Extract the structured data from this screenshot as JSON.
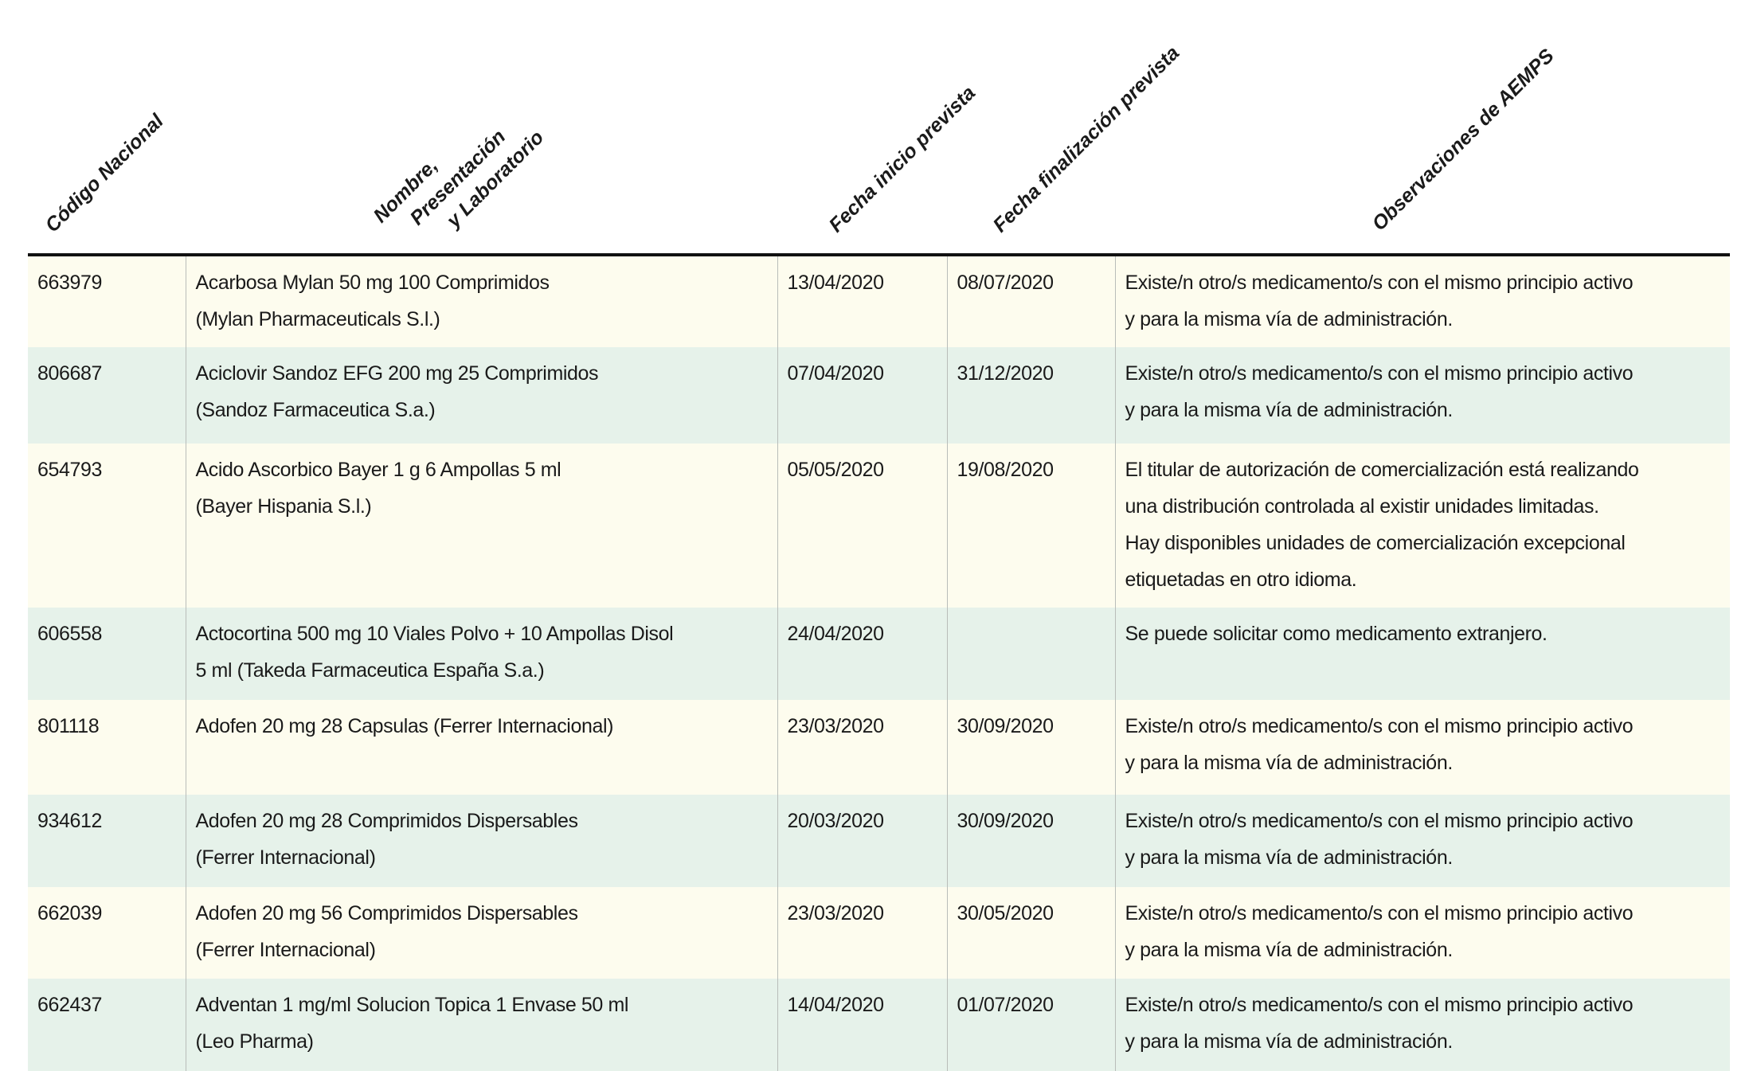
{
  "headers": {
    "codigo": "Código Nacional",
    "nombre": [
      "Nombre,",
      "Presentación",
      "y Laboratorio"
    ],
    "inicio": "Fecha inicio prevista",
    "fin": "Fecha finalización prevista",
    "obs": "Observaciones de AEMPS"
  },
  "rows": [
    {
      "codigo": "663979",
      "nombre": [
        "Acarbosa Mylan 50 mg 100 Comprimidos",
        "(Mylan Pharmaceuticals S.l.)"
      ],
      "inicio": "13/04/2020",
      "fin": "08/07/2020",
      "obs": [
        "Existe/n otro/s medicamento/s con el mismo principio activo",
        "y para la misma vía de administración."
      ]
    },
    {
      "codigo": "806687",
      "nombre": [
        "Aciclovir Sandoz EFG 200 mg 25 Comprimidos",
        "(Sandoz Farmaceutica S.a.)"
      ],
      "inicio": "07/04/2020",
      "fin": "31/12/2020",
      "obs": [
        "Existe/n otro/s medicamento/s con el mismo principio activo",
        "y para la misma vía de administración."
      ]
    },
    {
      "codigo": "654793",
      "nombre": [
        "Acido Ascorbico Bayer 1 g 6 Ampollas 5 ml",
        "(Bayer Hispania S.l.)"
      ],
      "inicio": "05/05/2020",
      "fin": "19/08/2020",
      "obs": [
        "El titular de autorización de comercialización está realizando",
        "una distribución controlada al existir unidades limitadas.",
        "Hay disponibles unidades de comercialización excepcional",
        "etiquetadas en otro idioma."
      ]
    },
    {
      "codigo": "606558",
      "nombre": [
        "Actocortina 500 mg 10 Viales Polvo + 10 Ampollas Disol",
        "5 ml (Takeda Farmaceutica España S.a.)"
      ],
      "inicio": "24/04/2020",
      "fin": "",
      "obs": [
        "Se puede solicitar como medicamento extranjero."
      ]
    },
    {
      "codigo": "801118",
      "nombre": [
        "Adofen 20 mg 28 Capsulas (Ferrer Internacional)"
      ],
      "inicio": "23/03/2020",
      "fin": "30/09/2020",
      "obs": [
        "Existe/n otro/s medicamento/s con el mismo principio activo",
        "y para la misma vía de administración."
      ]
    },
    {
      "codigo": "934612",
      "nombre": [
        "Adofen 20 mg 28 Comprimidos Dispersables",
        "(Ferrer Internacional)"
      ],
      "inicio": "20/03/2020",
      "fin": "30/09/2020",
      "obs": [
        "Existe/n otro/s medicamento/s con el mismo principio activo",
        "y para la misma vía de administración."
      ]
    },
    {
      "codigo": "662039",
      "nombre": [
        "Adofen 20 mg 56 Comprimidos Dispersables",
        "(Ferrer Internacional)"
      ],
      "inicio": "23/03/2020",
      "fin": "30/05/2020",
      "obs": [
        "Existe/n otro/s medicamento/s con el mismo principio activo",
        "y para la misma vía de administración."
      ]
    },
    {
      "codigo": "662437",
      "nombre": [
        "Adventan 1 mg/ml Solucion Topica 1 Envase 50 ml",
        "(Leo Pharma)"
      ],
      "inicio": "14/04/2020",
      "fin": "01/07/2020",
      "obs": [
        "Existe/n otro/s medicamento/s con el mismo principio activo",
        "y para la misma vía de administración."
      ]
    }
  ]
}
